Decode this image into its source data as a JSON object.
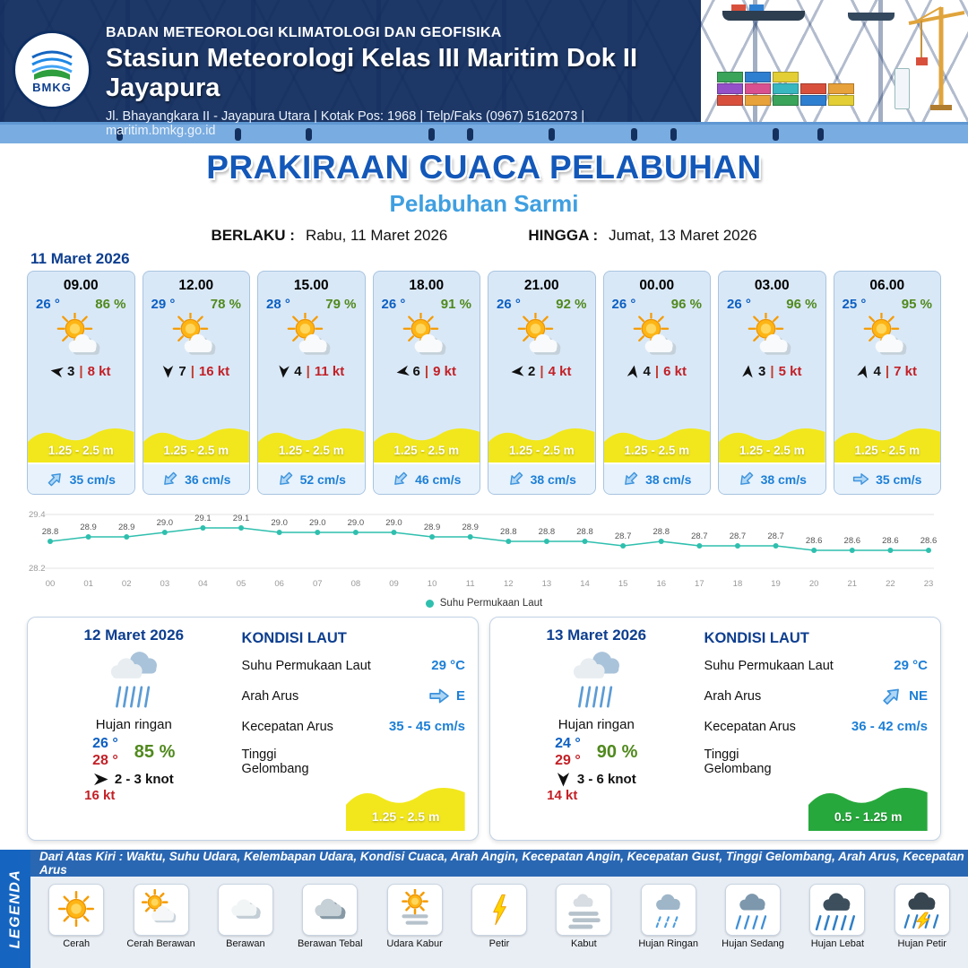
{
  "header": {
    "logo_text": "BMKG",
    "agency": "BADAN METEOROLOGI KLIMATOLOGI DAN GEOFISIKA",
    "station": "Stasiun Meteorologi Kelas III Maritim Dok II Jayapura",
    "address": "Jl. Bhayangkara II - Jayapura Utara | Kotak Pos: 1968 | Telp/Faks (0967) 5162073 | maritim.bmkg.go.id"
  },
  "title": {
    "main": "PRAKIRAAN CUACA PELABUHAN",
    "subtitle": "Pelabuhan Sarmi",
    "berlaku_label": "BERLAKU :",
    "berlaku_value": "Rabu, 11 Maret 2026",
    "hingga_label": "HINGGA :",
    "hingga_value": "Jumat, 13 Maret 2026"
  },
  "forecast": {
    "date": "11 Maret 2026",
    "cards": [
      {
        "time": "09.00",
        "temp": "26 °",
        "humidity": "86 %",
        "icon": "sun-cloud-big",
        "wind_dir_deg": 280,
        "wind_val": "3",
        "wind_kt": "8 kt",
        "wave": "1.25 - 2.5 m",
        "wave_color": "#f2e71c",
        "current_dir_deg": -45,
        "current": "35 cm/s"
      },
      {
        "time": "12.00",
        "temp": "29 °",
        "humidity": "78 %",
        "icon": "sun-cloud-big",
        "wind_dir_deg": 180,
        "wind_val": "7",
        "wind_kt": "16 kt",
        "wave": "1.25 - 2.5 m",
        "wave_color": "#f2e71c",
        "current_dir_deg": 135,
        "current": "36 cm/s"
      },
      {
        "time": "15.00",
        "temp": "28 °",
        "humidity": "79 %",
        "icon": "sun-cloud-big",
        "wind_dir_deg": 185,
        "wind_val": "4",
        "wind_kt": "11 kt",
        "wave": "1.25 - 2.5 m",
        "wave_color": "#f2e71c",
        "current_dir_deg": 135,
        "current": "52 cm/s"
      },
      {
        "time": "18.00",
        "temp": "26 °",
        "humidity": "91 %",
        "icon": "sun-cloud-big",
        "wind_dir_deg": 260,
        "wind_val": "6",
        "wind_kt": "9 kt",
        "wave": "1.25 - 2.5 m",
        "wave_color": "#f2e71c",
        "current_dir_deg": 135,
        "current": "46 cm/s"
      },
      {
        "time": "21.00",
        "temp": "26 °",
        "humidity": "92 %",
        "icon": "sun-cloud-big",
        "wind_dir_deg": 265,
        "wind_val": "2",
        "wind_kt": "4 kt",
        "wave": "1.25 - 2.5 m",
        "wave_color": "#f2e71c",
        "current_dir_deg": 135,
        "current": "38 cm/s"
      },
      {
        "time": "00.00",
        "temp": "26 °",
        "humidity": "96 %",
        "icon": "sun-cloud-big",
        "wind_dir_deg": 10,
        "wind_val": "4",
        "wind_kt": "6 kt",
        "wave": "1.25 - 2.5 m",
        "wave_color": "#f2e71c",
        "current_dir_deg": 135,
        "current": "38 cm/s"
      },
      {
        "time": "03.00",
        "temp": "26 °",
        "humidity": "96 %",
        "icon": "sun-cloud-big",
        "wind_dir_deg": 5,
        "wind_val": "3",
        "wind_kt": "5 kt",
        "wave": "1.25 - 2.5 m",
        "wave_color": "#f2e71c",
        "current_dir_deg": 135,
        "current": "38 cm/s"
      },
      {
        "time": "06.00",
        "temp": "25 °",
        "humidity": "95 %",
        "icon": "sun-cloud-big",
        "wind_dir_deg": 15,
        "wind_val": "4",
        "wind_kt": "7 kt",
        "wave": "1.25 - 2.5 m",
        "wave_color": "#f2e71c",
        "current_dir_deg": 0,
        "current": "35 cm/s"
      }
    ]
  },
  "chart_data": {
    "type": "line",
    "title": "",
    "x": [
      "00",
      "01",
      "02",
      "03",
      "04",
      "05",
      "06",
      "07",
      "08",
      "09",
      "10",
      "11",
      "12",
      "13",
      "14",
      "15",
      "16",
      "17",
      "18",
      "19",
      "20",
      "21",
      "22",
      "23"
    ],
    "series": [
      {
        "name": "Suhu Permukaan Laut",
        "values": [
          28.8,
          28.9,
          28.9,
          29.0,
          29.1,
          29.1,
          29.0,
          29.0,
          29.0,
          29.0,
          28.9,
          28.9,
          28.8,
          28.8,
          28.8,
          28.7,
          28.8,
          28.7,
          28.7,
          28.7,
          28.6,
          28.6,
          28.6,
          28.6
        ]
      }
    ],
    "ylim": [
      28.2,
      29.4
    ],
    "color": "#2fbfae",
    "legend_position": "bottom",
    "grid": false
  },
  "daily": {
    "kondisi_title": "KONDISI LAUT",
    "kondisi_labels": [
      "Suhu Permukaan Laut",
      "Arah Arus",
      "Kecepatan Arus",
      "Tinggi Gelombang"
    ],
    "cards": [
      {
        "date": "12 Maret 2026",
        "icon": "rain-day",
        "condition": "Hujan ringan",
        "temp_min": "26 °",
        "temp_max": "28 °",
        "humidity": "85 %",
        "wind_dir_deg": 90,
        "wind_range": "2 - 3 knot",
        "gust": "16 kt",
        "sst": "29 °C",
        "arah": "E",
        "arah_deg": 0,
        "kecepatan": "35 - 45 cm/s",
        "gelombang": "1.25 - 2.5 m",
        "gelombang_color": "#f2e71c"
      },
      {
        "date": "13 Maret 2026",
        "icon": "rain-day",
        "condition": "Hujan ringan",
        "temp_min": "24 °",
        "temp_max": "29 °",
        "humidity": "90 %",
        "wind_dir_deg": 180,
        "wind_range": "3 - 6 knot",
        "gust": "14 kt",
        "sst": "29 °C",
        "arah": "NE",
        "arah_deg": -45,
        "kecepatan": "36 - 42 cm/s",
        "gelombang": "0.5 - 1.25 m",
        "gelombang_color": "#27a83c"
      }
    ]
  },
  "legend": {
    "side_label": "LEGENDA",
    "note": "Dari Atas Kiri : Waktu, Suhu Udara, Kelembapan Udara, Kondisi Cuaca, Arah Angin, Kecepatan Angin, Kecepatan Gust, Tinggi Gelombang, Arah Arus, Kecepatan Arus",
    "items": [
      {
        "label": "Cerah",
        "icon": "sun"
      },
      {
        "label": "Cerah Berawan",
        "icon": "sun-cloud"
      },
      {
        "label": "Berawan",
        "icon": "cloud"
      },
      {
        "label": "Berawan Tebal",
        "icon": "cloud-thick"
      },
      {
        "label": "Udara Kabur",
        "icon": "haze"
      },
      {
        "label": "Petir",
        "icon": "thunder"
      },
      {
        "label": "Kabut",
        "icon": "fog"
      },
      {
        "label": "Hujan Ringan",
        "icon": "rain-light"
      },
      {
        "label": "Hujan Sedang",
        "icon": "rain-medium"
      },
      {
        "label": "Hujan Lebat",
        "icon": "rain-heavy"
      },
      {
        "label": "Hujan Petir",
        "icon": "rain-thunder"
      }
    ]
  }
}
